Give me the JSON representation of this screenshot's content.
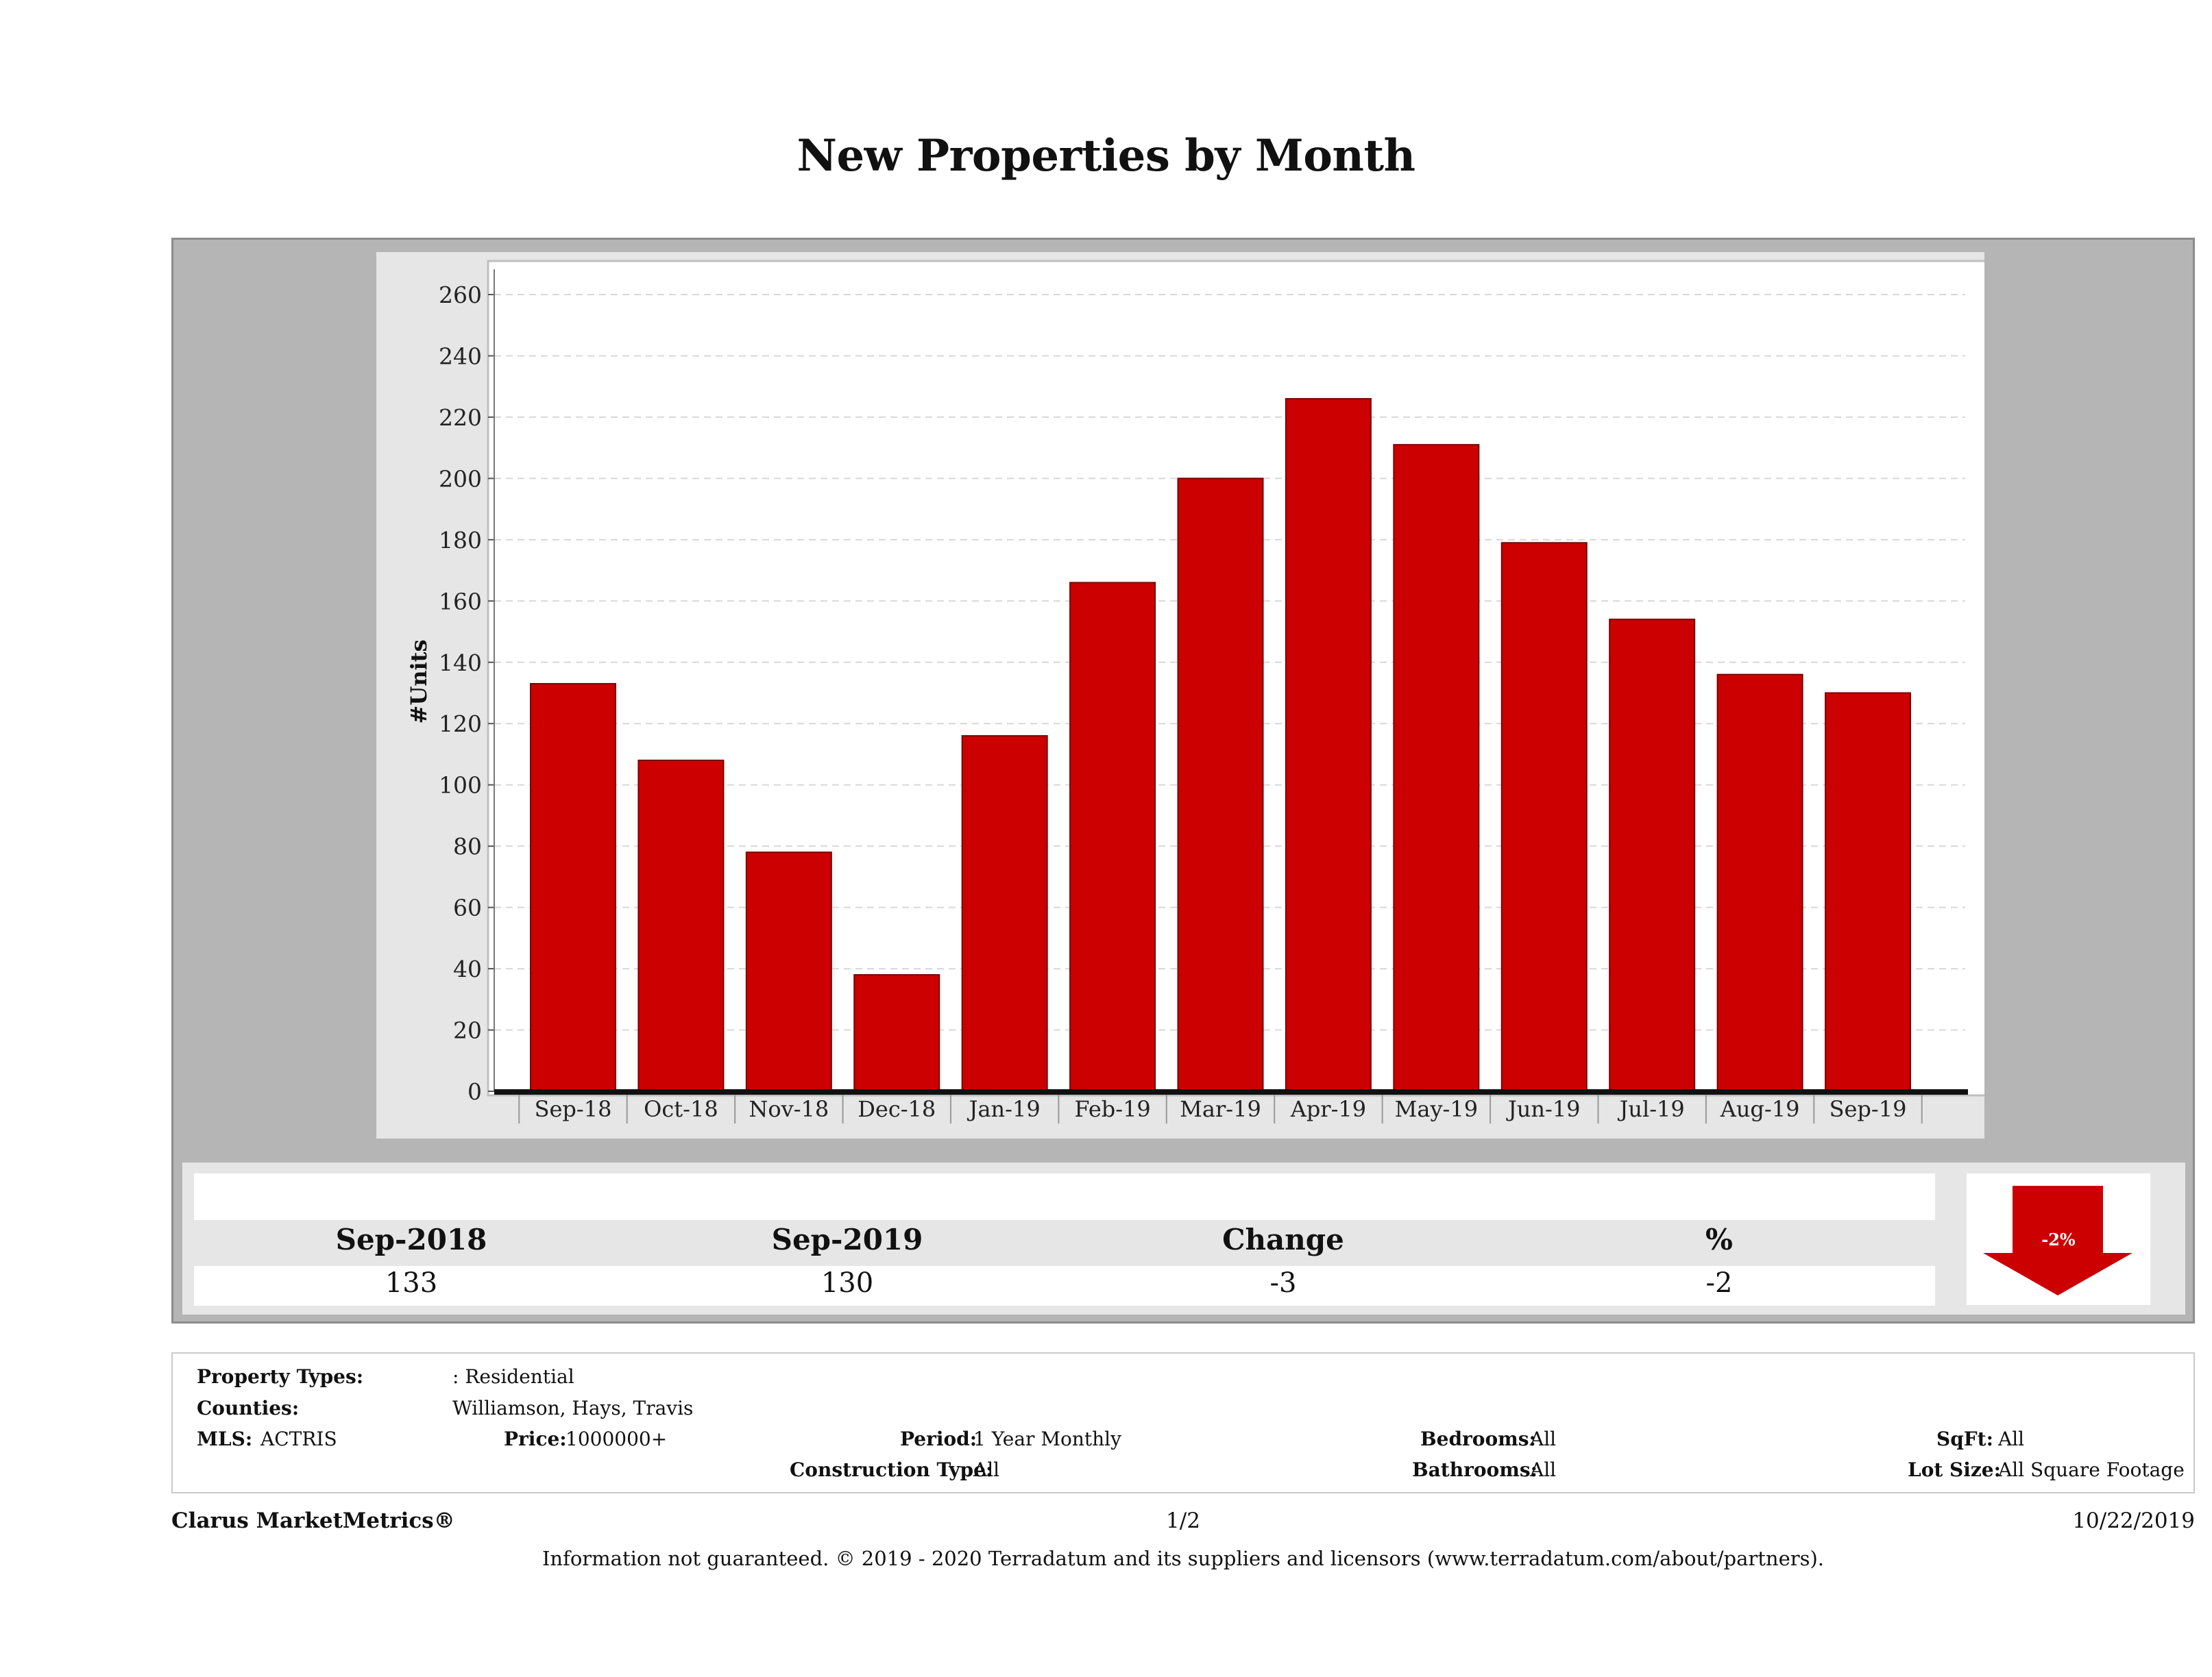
{
  "page": {
    "title": "New Properties by Month"
  },
  "chart_data": {
    "type": "bar",
    "title": "New Properties by Month",
    "xlabel": "",
    "ylabel": "#Units",
    "ylim": [
      0,
      260
    ],
    "yticks": [
      0,
      20,
      40,
      60,
      80,
      100,
      120,
      140,
      160,
      180,
      200,
      220,
      240,
      260
    ],
    "categories": [
      "Sep-18",
      "Oct-18",
      "Nov-18",
      "Dec-18",
      "Jan-19",
      "Feb-19",
      "Mar-19",
      "Apr-19",
      "May-19",
      "Jun-19",
      "Jul-19",
      "Aug-19",
      "Sep-19"
    ],
    "values": [
      133,
      108,
      78,
      38,
      116,
      166,
      200,
      226,
      211,
      179,
      154,
      136,
      130
    ],
    "bar_color": "#cc0000",
    "grid": true,
    "legend": "none"
  },
  "summary": {
    "headers": [
      "Sep-2018",
      "Sep-2019",
      "Change",
      "%"
    ],
    "values": [
      "133",
      "130",
      "-3",
      "-2"
    ],
    "indicator": {
      "label": "-2%",
      "direction": "down",
      "color": "#cc0000",
      "icon": "down-arrow-icon"
    }
  },
  "filters": {
    "property_types_label": "Property Types:",
    "property_types_value": ": Residential",
    "counties_label": "Counties:",
    "counties_value": "Williamson, Hays, Travis",
    "mls_label": "MLS:",
    "mls_value": "ACTRIS",
    "price_label": "Price:",
    "price_value": "1000000+",
    "period_label": "Period:",
    "period_value": "1 Year Monthly",
    "construction_label": "Construction Type:",
    "construction_value": "All",
    "bedrooms_label": "Bedrooms:",
    "bedrooms_value": "All",
    "bathrooms_label": "Bathrooms:",
    "bathrooms_value": "All",
    "sqft_label": "SqFt:",
    "sqft_value": "All",
    "lotsize_label": "Lot Size:",
    "lotsize_value": "All Square Footage"
  },
  "footer": {
    "brand": "Clarus MarketMetrics®",
    "page": "1/2",
    "date": "10/22/2019",
    "disclaimer": "Information not guaranteed. © 2019 - 2020 Terradatum and its suppliers and licensors (www.terradatum.com/about/partners)."
  }
}
